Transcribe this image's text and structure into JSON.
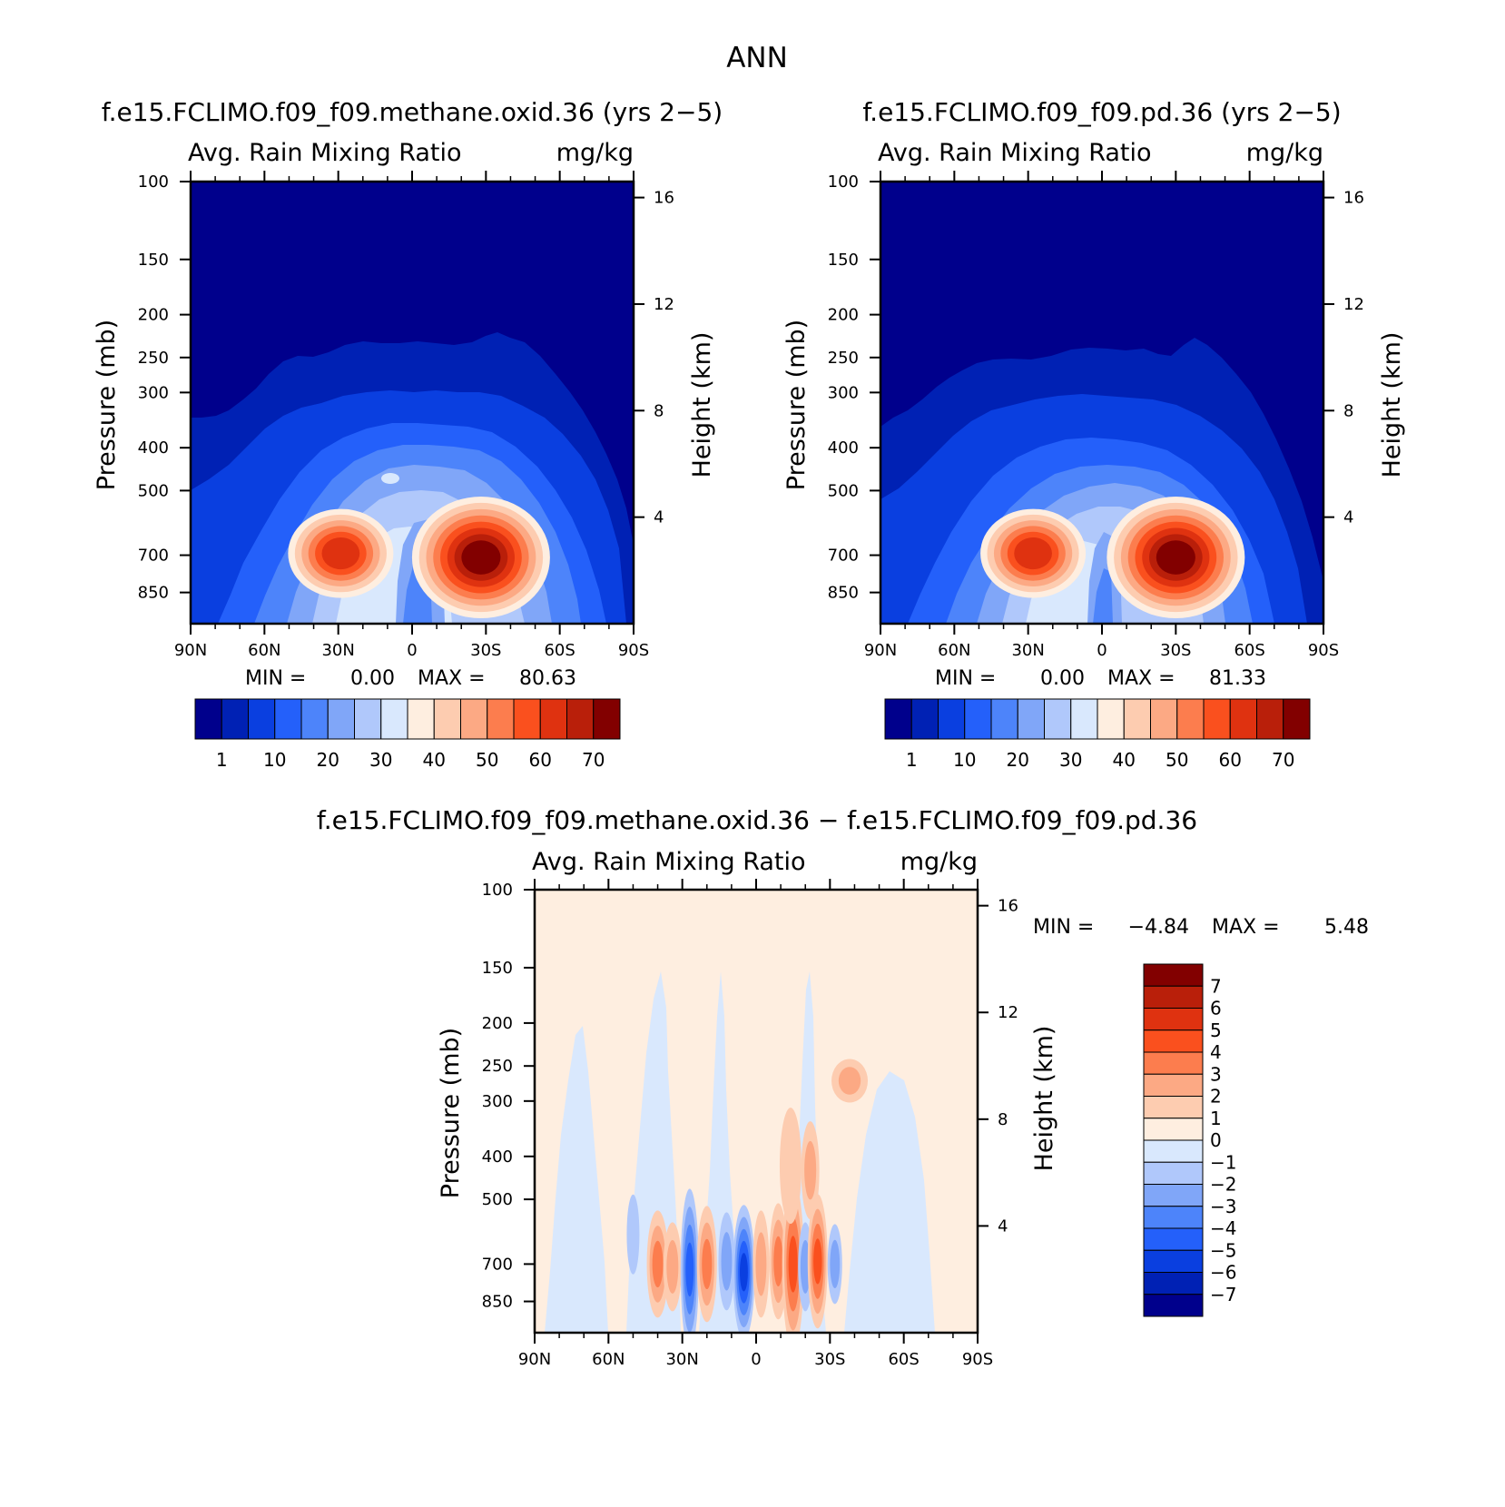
{
  "figure": {
    "title": "ANN"
  },
  "chart_data": [
    {
      "type": "heatmap",
      "title": "f.e15.FCLIMO.f09_f09.methane.oxid.36 (yrs 2−5)",
      "subtitle_left": "Avg. Rain Mixing Ratio",
      "subtitle_right": "mg/kg",
      "ylabel": "Pressure (mb)",
      "y2label": "Height (km)",
      "x_ticks": [
        "90N",
        "60N",
        "30N",
        "0",
        "30S",
        "60S",
        "90S"
      ],
      "y_ticks": [
        "100",
        "150",
        "200",
        "250",
        "300",
        "400",
        "500",
        "700",
        "850"
      ],
      "y2_ticks": [
        "16",
        "12",
        "8",
        "4"
      ],
      "ylim": [
        100,
        1000
      ],
      "min_label": "MIN =",
      "min_value": "0.00",
      "max_label": "MAX =",
      "max_value": "80.63",
      "colorbar_labels": [
        "1",
        "10",
        "20",
        "30",
        "40",
        "50",
        "60",
        "70"
      ],
      "colorbar_colors": [
        "#00008c",
        "#0021b4",
        "#0a3fe0",
        "#2460fa",
        "#4d84fa",
        "#80a6f8",
        "#b0c8fb",
        "#d9e8fd",
        "#feeee0",
        "#fdccb0",
        "#fca984",
        "#fc7d4e",
        "#fa501e",
        "#df3210",
        "#b91f0a",
        "#820000"
      ],
      "features": [
        {
          "lat": -28,
          "p": 715,
          "peak": 80.63
        },
        {
          "lat": 29,
          "p": 700,
          "peak": 62
        }
      ]
    },
    {
      "type": "heatmap",
      "title": "f.e15.FCLIMO.f09_f09.pd.36 (yrs 2−5)",
      "subtitle_left": "Avg. Rain Mixing Ratio",
      "subtitle_right": "mg/kg",
      "ylabel": "Pressure (mb)",
      "y2label": "Height (km)",
      "x_ticks": [
        "90N",
        "60N",
        "30N",
        "0",
        "30S",
        "60S",
        "90S"
      ],
      "y_ticks": [
        "100",
        "150",
        "200",
        "250",
        "300",
        "400",
        "500",
        "700",
        "850"
      ],
      "y2_ticks": [
        "16",
        "12",
        "8",
        "4"
      ],
      "ylim": [
        100,
        1000
      ],
      "min_label": "MIN =",
      "min_value": "0.00",
      "max_label": "MAX =",
      "max_value": "81.33",
      "colorbar_labels": [
        "1",
        "10",
        "20",
        "30",
        "40",
        "50",
        "60",
        "70"
      ],
      "colorbar_colors": [
        "#00008c",
        "#0021b4",
        "#0a3fe0",
        "#2460fa",
        "#4d84fa",
        "#80a6f8",
        "#b0c8fb",
        "#d9e8fd",
        "#feeee0",
        "#fdccb0",
        "#fca984",
        "#fc7d4e",
        "#fa501e",
        "#df3210",
        "#b91f0a",
        "#820000"
      ],
      "features": [
        {
          "lat": -30,
          "p": 715,
          "peak": 81.33
        },
        {
          "lat": 28,
          "p": 700,
          "peak": 60
        }
      ]
    },
    {
      "type": "heatmap",
      "title": "f.e15.FCLIMO.f09_f09.methane.oxid.36 − f.e15.FCLIMO.f09_f09.pd.36",
      "subtitle_left": "Avg. Rain Mixing Ratio",
      "subtitle_right": "mg/kg",
      "ylabel": "Pressure (mb)",
      "y2label": "Height (km)",
      "x_ticks": [
        "90N",
        "60N",
        "30N",
        "0",
        "30S",
        "60S",
        "90S"
      ],
      "y_ticks": [
        "100",
        "150",
        "200",
        "250",
        "300",
        "400",
        "500",
        "700",
        "850"
      ],
      "y2_ticks": [
        "16",
        "12",
        "8",
        "4"
      ],
      "ylim": [
        100,
        1000
      ],
      "min_label": "MIN =",
      "min_value": "−4.84",
      "max_label": "MAX =",
      "max_value": "5.48",
      "colorbar_labels": [
        "7",
        "6",
        "5",
        "4",
        "3",
        "2",
        "1",
        "0",
        "−1",
        "−2",
        "−3",
        "−4",
        "−5",
        "−6",
        "−7"
      ],
      "colorbar_colors": [
        "#820000",
        "#b91f0a",
        "#df3210",
        "#fa501e",
        "#fc7d4e",
        "#fca984",
        "#fdccb0",
        "#feeee0",
        "#d9e8fd",
        "#b0c8fb",
        "#80a6f8",
        "#4d84fa",
        "#2460fa",
        "#0a3fe0",
        "#0021b4",
        "#00008c"
      ],
      "features": [
        {
          "lat": -15,
          "p": 700,
          "peak": 5.48
        },
        {
          "lat": 5,
          "p": 730,
          "peak": -4.84
        },
        {
          "lat": -25,
          "p": 690,
          "peak": 4.0
        }
      ]
    }
  ]
}
